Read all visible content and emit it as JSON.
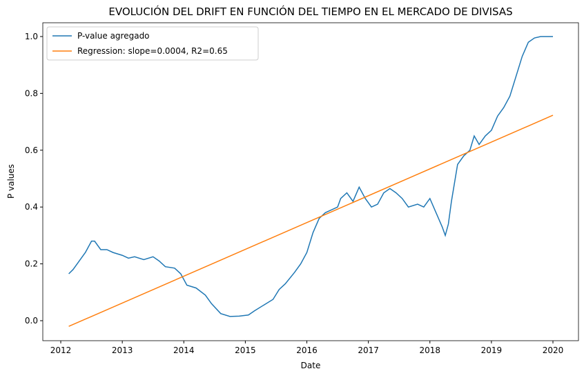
{
  "chart_data": {
    "type": "line",
    "title": "EVOLUCIÓN DEL DRIFT EN FUNCIÓN DEL TIEMPO EN EL MERCADO DE DIVISAS",
    "x_label": "Date",
    "y_label": "P values",
    "legend": "upper left",
    "xlim": [
      2011.708,
      2020.415
    ],
    "xticks": [
      2012,
      2013,
      2014,
      2015,
      2016,
      2017,
      2018,
      2019,
      2020
    ],
    "ylim": [
      -0.0704,
      1.0485
    ],
    "yticks": [
      {
        "value": 0,
        "label": "0.0"
      },
      0.2,
      0.4,
      0.6,
      0.8,
      {
        "value": 1,
        "label": "1.0"
      }
    ],
    "series": [
      {
        "name": "P-value agregado",
        "color": "#1f77b4",
        "x": [
          2012.13,
          2012.2,
          2012.3,
          2012.4,
          2012.5,
          2012.55,
          2012.65,
          2012.75,
          2012.85,
          2013.0,
          2013.1,
          2013.2,
          2013.35,
          2013.5,
          2013.6,
          2013.7,
          2013.85,
          2013.95,
          2014.05,
          2014.2,
          2014.35,
          2014.45,
          2014.6,
          2014.75,
          2014.9,
          2015.05,
          2015.15,
          2015.3,
          2015.45,
          2015.55,
          2015.65,
          2015.8,
          2015.9,
          2016.0,
          2016.1,
          2016.2,
          2016.3,
          2016.4,
          2016.5,
          2016.55,
          2016.65,
          2016.75,
          2016.85,
          2016.95,
          2017.05,
          2017.15,
          2017.25,
          2017.35,
          2017.45,
          2017.55,
          2017.65,
          2017.8,
          2017.9,
          2018.0,
          2018.1,
          2018.2,
          2018.25,
          2018.3,
          2018.35,
          2018.45,
          2018.55,
          2018.65,
          2018.72,
          2018.8,
          2018.9,
          2019.0,
          2019.1,
          2019.2,
          2019.3,
          2019.4,
          2019.5,
          2019.6,
          2019.7,
          2019.8,
          2020.0
        ],
        "values": [
          0.165,
          0.18,
          0.21,
          0.24,
          0.28,
          0.28,
          0.25,
          0.25,
          0.24,
          0.23,
          0.22,
          0.225,
          0.215,
          0.225,
          0.21,
          0.19,
          0.185,
          0.165,
          0.125,
          0.115,
          0.09,
          0.06,
          0.025,
          0.015,
          0.016,
          0.02,
          0.035,
          0.055,
          0.075,
          0.11,
          0.13,
          0.17,
          0.2,
          0.24,
          0.31,
          0.36,
          0.38,
          0.39,
          0.4,
          0.43,
          0.45,
          0.42,
          0.47,
          0.43,
          0.4,
          0.41,
          0.45,
          0.465,
          0.45,
          0.43,
          0.4,
          0.41,
          0.4,
          0.43,
          0.38,
          0.33,
          0.3,
          0.34,
          0.42,
          0.55,
          0.58,
          0.6,
          0.65,
          0.62,
          0.65,
          0.67,
          0.72,
          0.75,
          0.79,
          0.86,
          0.93,
          0.98,
          0.995,
          1.0,
          1.0
        ]
      },
      {
        "name": "Regression: slope=0.0004, R2=0.65",
        "color": "#ff7f0e",
        "x": [
          2012.13,
          2020.0
        ],
        "values": [
          -0.02,
          0.723
        ]
      }
    ]
  }
}
